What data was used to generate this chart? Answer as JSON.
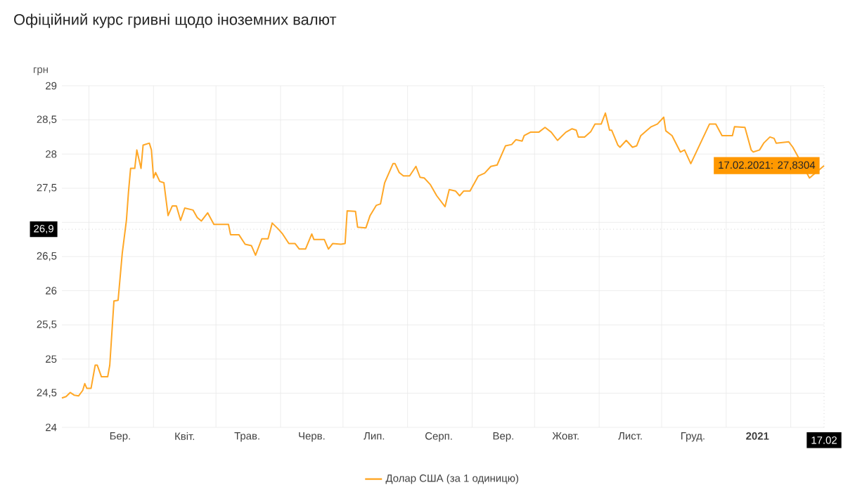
{
  "chart_data": {
    "type": "line",
    "title": "Офіційний курс гривні щодо іноземних валют",
    "ylabel": "грн",
    "xlim": [
      "2020-02-17",
      "2021-02-17"
    ],
    "ylim": [
      24,
      29
    ],
    "yticks": [
      24,
      {
        "value": 24.5,
        "label": "24,5"
      },
      25,
      {
        "value": 25.5,
        "label": "25,5"
      },
      26,
      {
        "value": 26.5,
        "label": "26,5"
      },
      {
        "value": 27,
        "label": null
      },
      {
        "value": 27.5,
        "label": "27,5"
      },
      28,
      {
        "value": 28.5,
        "label": "28,5"
      },
      29
    ],
    "xticks": [
      {
        "value": "2020-03-01",
        "label": null
      },
      {
        "value": "2020-03-16",
        "label": "Бер."
      },
      {
        "value": "2020-04-01",
        "label": null
      },
      {
        "value": "2020-04-16",
        "label": "Квіт."
      },
      {
        "value": "2020-05-01",
        "label": null
      },
      {
        "value": "2020-05-16",
        "label": "Трав."
      },
      {
        "value": "2020-06-01",
        "label": null
      },
      {
        "value": "2020-06-16",
        "label": "Черв."
      },
      {
        "value": "2020-07-01",
        "label": null
      },
      {
        "value": "2020-07-16",
        "label": "Лип."
      },
      {
        "value": "2020-08-01",
        "label": null
      },
      {
        "value": "2020-08-16",
        "label": "Серп."
      },
      {
        "value": "2020-09-01",
        "label": null
      },
      {
        "value": "2020-09-16",
        "label": "Вер."
      },
      {
        "value": "2020-10-01",
        "label": null
      },
      {
        "value": "2020-10-16",
        "label": "Жовт."
      },
      {
        "value": "2020-11-01",
        "label": null
      },
      {
        "value": "2020-11-16",
        "label": "Лист."
      },
      {
        "value": "2020-12-01",
        "label": null
      },
      {
        "value": "2020-12-16",
        "label": "Груд."
      },
      {
        "value": "2021-01-01",
        "label": null
      },
      {
        "value": "2021-01-16",
        "label": "2021"
      },
      {
        "value": "2021-02-01",
        "label": null
      },
      {
        "value": "2021-02-17",
        "label": "17.02"
      }
    ],
    "grid": true,
    "legend": "bottom",
    "ref_lines": [
      {
        "axis": "y",
        "value": 26.9,
        "label": "26,9",
        "color": "#bbbbbb",
        "line_style": "dotted"
      },
      {
        "axis": "x",
        "value": "2021-02-17",
        "color": "#bbbbbb",
        "line_style": "dotted"
      }
    ],
    "annotations": [
      {
        "text": "17.02.2021: 27,8304",
        "x": "2021-02-17",
        "y": 27.8304
      }
    ],
    "series": [
      {
        "name": "Долар США (за 1 одиницю)",
        "color": "#ffa726",
        "x": [
          "2020-02-17",
          "2020-02-19",
          "2020-02-21",
          "2020-02-23",
          "2020-02-25",
          "2020-02-27",
          "2020-02-28",
          "2020-02-29",
          "2020-03-02",
          "2020-03-04",
          "2020-03-05",
          "2020-03-07",
          "2020-03-10",
          "2020-03-11",
          "2020-03-13",
          "2020-03-15",
          "2020-03-17",
          "2020-03-19",
          "2020-03-20",
          "2020-03-21",
          "2020-03-23",
          "2020-03-24",
          "2020-03-26",
          "2020-03-27",
          "2020-03-30",
          "2020-03-31",
          "2020-04-01",
          "2020-04-02",
          "2020-04-04",
          "2020-04-06",
          "2020-04-07",
          "2020-04-08",
          "2020-04-10",
          "2020-04-12",
          "2020-04-14",
          "2020-04-16",
          "2020-04-20",
          "2020-04-22",
          "2020-04-24",
          "2020-04-27",
          "2020-04-30",
          "2020-05-07",
          "2020-05-08",
          "2020-05-12",
          "2020-05-15",
          "2020-05-18",
          "2020-05-20",
          "2020-05-23",
          "2020-05-26",
          "2020-05-28",
          "2020-05-31",
          "2020-06-02",
          "2020-06-05",
          "2020-06-08",
          "2020-06-10",
          "2020-06-13",
          "2020-06-16",
          "2020-06-17",
          "2020-06-22",
          "2020-06-24",
          "2020-06-26",
          "2020-06-30",
          "2020-07-02",
          "2020-07-03",
          "2020-07-07",
          "2020-07-08",
          "2020-07-12",
          "2020-07-14",
          "2020-07-17",
          "2020-07-19",
          "2020-07-21",
          "2020-07-25",
          "2020-07-26",
          "2020-07-28",
          "2020-07-30",
          "2020-08-02",
          "2020-08-05",
          "2020-08-07",
          "2020-08-09",
          "2020-08-12",
          "2020-08-15",
          "2020-08-19",
          "2020-08-21",
          "2020-08-24",
          "2020-08-26",
          "2020-08-28",
          "2020-08-31",
          "2020-09-04",
          "2020-09-07",
          "2020-09-10",
          "2020-09-13",
          "2020-09-17",
          "2020-09-20",
          "2020-09-22",
          "2020-09-25",
          "2020-09-26",
          "2020-09-29",
          "2020-10-03",
          "2020-10-06",
          "2020-10-09",
          "2020-10-12",
          "2020-10-16",
          "2020-10-19",
          "2020-10-21",
          "2020-10-22",
          "2020-10-25",
          "2020-10-28",
          "2020-10-30",
          "2020-11-02",
          "2020-11-04",
          "2020-11-06",
          "2020-11-07",
          "2020-11-10",
          "2020-11-11",
          "2020-11-14",
          "2020-11-17",
          "2020-11-19",
          "2020-11-21",
          "2020-11-24",
          "2020-11-26",
          "2020-11-29",
          "2020-12-02",
          "2020-12-03",
          "2020-12-06",
          "2020-12-10",
          "2020-12-12",
          "2020-12-15",
          "2020-12-24",
          "2020-12-27",
          "2020-12-30",
          "2021-01-04",
          "2021-01-05",
          "2021-01-10",
          "2021-01-13",
          "2021-01-14",
          "2021-01-17",
          "2021-01-19",
          "2021-01-22",
          "2021-01-24",
          "2021-01-25",
          "2021-01-31",
          "2021-02-02",
          "2021-02-04",
          "2021-02-10",
          "2021-02-17"
        ],
        "values": [
          24.43,
          24.45,
          24.51,
          24.47,
          24.46,
          24.54,
          24.64,
          24.57,
          24.57,
          24.91,
          24.91,
          24.74,
          24.74,
          24.91,
          25.85,
          25.86,
          26.55,
          27.03,
          27.45,
          27.79,
          27.79,
          28.06,
          27.79,
          28.13,
          28.16,
          28.06,
          27.65,
          27.73,
          27.6,
          27.58,
          27.34,
          27.1,
          27.24,
          27.24,
          27.03,
          27.21,
          27.18,
          27.07,
          27.02,
          27.14,
          26.97,
          26.97,
          26.82,
          26.82,
          26.68,
          26.66,
          26.52,
          26.76,
          26.76,
          26.99,
          26.9,
          26.83,
          26.69,
          26.69,
          26.61,
          26.61,
          26.83,
          26.75,
          26.75,
          26.61,
          26.69,
          26.68,
          26.69,
          27.17,
          27.16,
          26.93,
          26.92,
          27.1,
          27.25,
          27.27,
          27.58,
          27.86,
          27.86,
          27.73,
          27.68,
          27.68,
          27.82,
          27.66,
          27.65,
          27.55,
          27.39,
          27.23,
          27.48,
          27.46,
          27.39,
          27.46,
          27.46,
          27.68,
          27.72,
          27.82,
          27.84,
          28.12,
          28.14,
          28.21,
          28.19,
          28.27,
          28.32,
          28.32,
          28.39,
          28.32,
          28.2,
          28.32,
          28.37,
          28.35,
          28.25,
          28.25,
          28.33,
          28.44,
          28.44,
          28.6,
          28.35,
          28.35,
          28.13,
          28.1,
          28.2,
          28.1,
          28.12,
          28.27,
          28.35,
          28.4,
          28.44,
          28.54,
          28.34,
          28.27,
          28.03,
          28.06,
          27.86,
          28.44,
          28.44,
          28.27,
          28.27,
          28.4,
          28.39,
          28.06,
          28.03,
          28.06,
          28.16,
          28.25,
          28.23,
          28.16,
          28.18,
          28.1,
          27.99,
          27.65,
          27.8304
        ]
      }
    ]
  }
}
